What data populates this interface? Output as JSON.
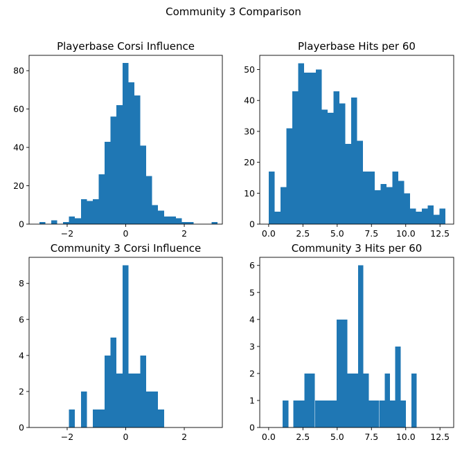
{
  "figure": {
    "suptitle": "Community 3 Comparison",
    "bar_color": "#1f77b4"
  },
  "chart_data": [
    {
      "type": "bar",
      "title": "Playerbase Corsi Influence",
      "xlabel": "",
      "ylabel": "",
      "xlim": [
        -3.3,
        3.3
      ],
      "ylim": [
        0,
        88
      ],
      "xticks": [
        -2,
        0,
        2
      ],
      "xtick_labels": [
        "−2",
        "0",
        "2"
      ],
      "yticks": [
        0,
        20,
        40,
        60,
        80
      ],
      "ytick_labels": [
        "0",
        "20",
        "40",
        "60",
        "80"
      ],
      "grid": false,
      "bin_edges": [
        -2.95,
        -2.747,
        -2.545,
        -2.342,
        -2.139,
        -1.936,
        -1.734,
        -1.531,
        -1.328,
        -1.126,
        -0.923,
        -0.72,
        -0.517,
        -0.315,
        -0.112,
        0.091,
        0.294,
        0.496,
        0.699,
        0.902,
        1.105,
        1.307,
        1.51,
        1.713,
        1.915,
        2.118,
        2.321,
        2.524,
        2.726,
        2.929,
        3.132
      ],
      "values": [
        1,
        0,
        2,
        0,
        1,
        4,
        3,
        13,
        12,
        13,
        26,
        43,
        56,
        62,
        84,
        74,
        67,
        41,
        25,
        10,
        7,
        4,
        4,
        3,
        1,
        1,
        0,
        0,
        0,
        1
      ]
    },
    {
      "type": "bar",
      "title": "Playerbase Hits per 60",
      "xlabel": "",
      "ylabel": "",
      "xlim": [
        -0.65,
        13.5
      ],
      "ylim": [
        0,
        54.6
      ],
      "xticks": [
        0,
        2.5,
        5,
        7.5,
        10,
        12.5
      ],
      "xtick_labels": [
        "0.0",
        "2.5",
        "5.0",
        "7.5",
        "10.0",
        "12.5"
      ],
      "yticks": [
        0,
        10,
        20,
        30,
        40,
        50
      ],
      "ytick_labels": [
        "0",
        "10",
        "20",
        "30",
        "40",
        "50"
      ],
      "grid": false,
      "bin_edges": [
        0.0,
        0.43,
        0.86,
        1.29,
        1.72,
        2.15,
        2.58,
        3.01,
        3.44,
        3.87,
        4.3,
        4.73,
        5.16,
        5.59,
        6.02,
        6.45,
        6.88,
        7.31,
        7.74,
        8.17,
        8.6,
        9.03,
        9.46,
        9.89,
        10.32,
        10.75,
        11.18,
        11.61,
        12.04,
        12.47,
        12.9
      ],
      "values": [
        17,
        4,
        12,
        31,
        43,
        52,
        49,
        49,
        50,
        37,
        36,
        43,
        39,
        26,
        41,
        27,
        17,
        17,
        11,
        13,
        12,
        17,
        14,
        10,
        5,
        4,
        5,
        6,
        3,
        5
      ]
    },
    {
      "type": "bar",
      "title": "Community 3 Corsi Influence",
      "xlabel": "",
      "ylabel": "",
      "xlim": [
        -3.3,
        3.3
      ],
      "ylim": [
        0,
        9.45
      ],
      "xticks": [
        -2,
        0,
        2
      ],
      "xtick_labels": [
        "−2",
        "0",
        "2"
      ],
      "yticks": [
        0,
        2,
        4,
        6,
        8
      ],
      "ytick_labels": [
        "0",
        "2",
        "4",
        "6",
        "8"
      ],
      "grid": false,
      "bin_edges": [
        -1.936,
        -1.734,
        -1.531,
        -1.328,
        -1.126,
        -0.923,
        -0.72,
        -0.517,
        -0.315,
        -0.112,
        0.091,
        0.294,
        0.496,
        0.699,
        0.902,
        1.105,
        1.307
      ],
      "values": [
        1,
        0,
        2,
        0,
        1,
        1,
        4,
        5,
        3,
        9,
        3,
        3,
        4,
        2,
        2,
        1
      ]
    },
    {
      "type": "bar",
      "title": "Community 3 Hits per 60",
      "xlabel": "",
      "ylabel": "",
      "xlim": [
        -0.65,
        13.5
      ],
      "ylim": [
        0,
        6.3
      ],
      "xticks": [
        0,
        2.5,
        5,
        7.5,
        10,
        12.5
      ],
      "xtick_labels": [
        "0.0",
        "2.5",
        "5.0",
        "7.5",
        "10.0",
        "12.5"
      ],
      "yticks": [
        0,
        1,
        2,
        3,
        4,
        5,
        6
      ],
      "ytick_labels": [
        "0",
        "1",
        "2",
        "3",
        "4",
        "5",
        "6"
      ],
      "grid": false,
      "bin_edges": [
        1.02,
        1.44,
        1.8,
        2.22,
        2.6,
        3.38,
        3.88,
        4.18,
        4.96,
        5.74,
        6.12,
        6.52,
        6.9,
        7.3,
        8.08,
        8.46,
        8.86,
        9.24,
        9.64,
        10.02,
        10.42,
        10.8
      ],
      "values": [
        1,
        0,
        1,
        1,
        2,
        1,
        1,
        1,
        4,
        2,
        2,
        6,
        2,
        1,
        1,
        2,
        1,
        3,
        1,
        0,
        2
      ]
    }
  ]
}
